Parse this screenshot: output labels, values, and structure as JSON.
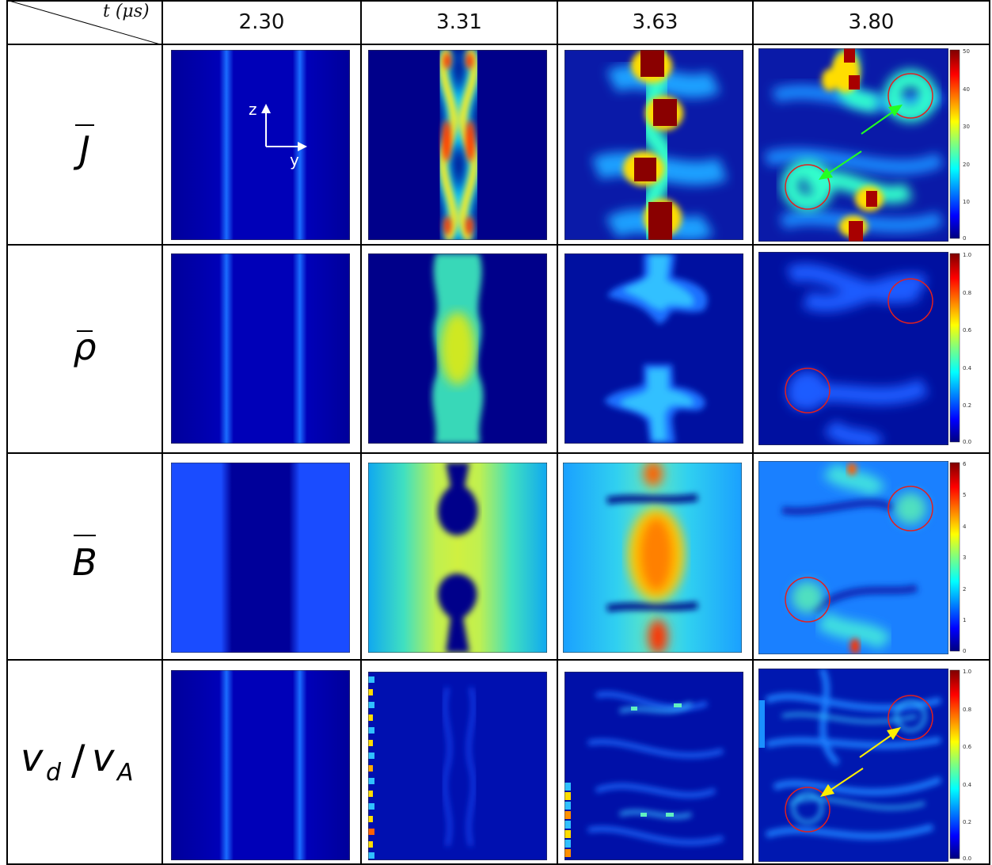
{
  "corner_label": "t (μs)",
  "time_columns": [
    "2.30",
    "3.31",
    "3.63",
    "3.80"
  ],
  "rows": [
    {
      "label_base": "J",
      "label_sub": "",
      "overbar": true
    },
    {
      "label_base": "ρ",
      "label_sub": "",
      "overbar": true
    },
    {
      "label_base": "B",
      "label_sub": "",
      "overbar": true
    },
    {
      "label_base": "v",
      "label_sub": "d",
      "label_slash": "/",
      "label_base2": "v",
      "label_sub2": "A",
      "overbar": false
    }
  ],
  "axes_inset": {
    "z": "z",
    "y": "y"
  },
  "colorbars": [
    {
      "ticks": [
        "50",
        "40",
        "30",
        "20",
        "10",
        "0"
      ]
    },
    {
      "ticks": [
        "1.0",
        "0.8",
        "0.6",
        "0.4",
        "0.2",
        "0.0"
      ]
    },
    {
      "ticks": [
        "6",
        "5",
        "4",
        "3",
        "2",
        "1",
        "0"
      ]
    },
    {
      "ticks": [
        "1.0",
        "0.8",
        "0.6",
        "0.4",
        "0.2",
        "0.0"
      ]
    }
  ],
  "colors": {
    "jet_dark": "#00007f",
    "jet_blue": "#0000ff",
    "jet_cyan": "#00ffff",
    "jet_yellow": "#ffff00",
    "jet_red": "#ff0000",
    "jet_darkred": "#7f0000",
    "circle": "#e02020",
    "arrow_green": "#22ff22",
    "arrow_yellow": "#ffee00"
  }
}
